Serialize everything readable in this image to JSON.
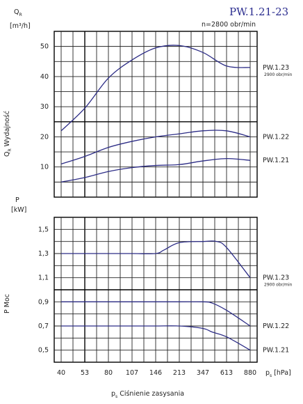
{
  "title": "PW.1.21-23",
  "speed_note": "n=2800 obr/min",
  "flow_axis": {
    "unit_symbol": "Q",
    "unit_subscript": "R",
    "unit": "[m³/h]",
    "label": "Wydajność"
  },
  "power_axis": {
    "symbol": "P",
    "unit": "[kW]",
    "label": "P  Moc"
  },
  "x_axis": {
    "symbol": "p",
    "subscript": "s",
    "unit": "[hPa]",
    "label": "Ciśnienie  zasysania"
  },
  "chart_data": [
    {
      "type": "line",
      "name": "flow",
      "x_ticks": [
        40,
        53,
        80,
        107,
        146,
        213,
        347,
        613,
        880
      ],
      "ylim": [
        0,
        55
      ],
      "y_ticks": [
        10,
        20,
        30,
        40,
        50
      ],
      "series": [
        {
          "name": "PW.1.23",
          "note": "2900 obr/min",
          "x": [
            40,
            53,
            80,
            107,
            146,
            213,
            347,
            613,
            880
          ],
          "y": [
            22,
            29.5,
            39.5,
            45.5,
            49.5,
            50.3,
            48,
            43.5,
            43
          ]
        },
        {
          "name": "PW.1.22",
          "x": [
            40,
            53,
            80,
            107,
            146,
            213,
            347,
            613,
            880
          ],
          "y": [
            11,
            13.5,
            16.5,
            18.5,
            20,
            21,
            22,
            22,
            20
          ]
        },
        {
          "name": "PW.1.21",
          "x": [
            40,
            53,
            80,
            107,
            146,
            213,
            347,
            613,
            880
          ],
          "y": [
            5,
            6.5,
            8.5,
            9.8,
            10.5,
            10.8,
            12,
            12.8,
            12.2
          ]
        }
      ]
    },
    {
      "type": "line",
      "name": "power",
      "x_ticks": [
        40,
        53,
        80,
        107,
        146,
        213,
        347,
        613,
        880
      ],
      "ylim": [
        0.4,
        1.6
      ],
      "y_ticks": [
        0.5,
        0.7,
        0.9,
        1.1,
        1.3,
        1.5
      ],
      "y_tick_labels": [
        "0,5",
        "0,7",
        "0,9",
        "1,1",
        "1,3",
        "1,5"
      ],
      "series": [
        {
          "name": "PW.1.23",
          "note": "2900 obr/min",
          "x": [
            40,
            53,
            80,
            107,
            146,
            170,
            213,
            347,
            500,
            613,
            880
          ],
          "y": [
            1.3,
            1.3,
            1.3,
            1.3,
            1.3,
            1.33,
            1.39,
            1.4,
            1.4,
            1.35,
            1.1
          ]
        },
        {
          "name": "PW.1.22",
          "x": [
            40,
            53,
            80,
            107,
            146,
            213,
            347,
            450,
            613,
            880
          ],
          "y": [
            0.9,
            0.9,
            0.9,
            0.9,
            0.9,
            0.9,
            0.9,
            0.89,
            0.83,
            0.7
          ]
        },
        {
          "name": "PW.1.21",
          "x": [
            40,
            53,
            80,
            107,
            146,
            213,
            347,
            450,
            613,
            880
          ],
          "y": [
            0.7,
            0.7,
            0.7,
            0.7,
            0.7,
            0.7,
            0.68,
            0.65,
            0.61,
            0.5
          ]
        }
      ]
    }
  ],
  "colors": {
    "curve": "#2c2c86",
    "title": "#2b2d8f"
  }
}
